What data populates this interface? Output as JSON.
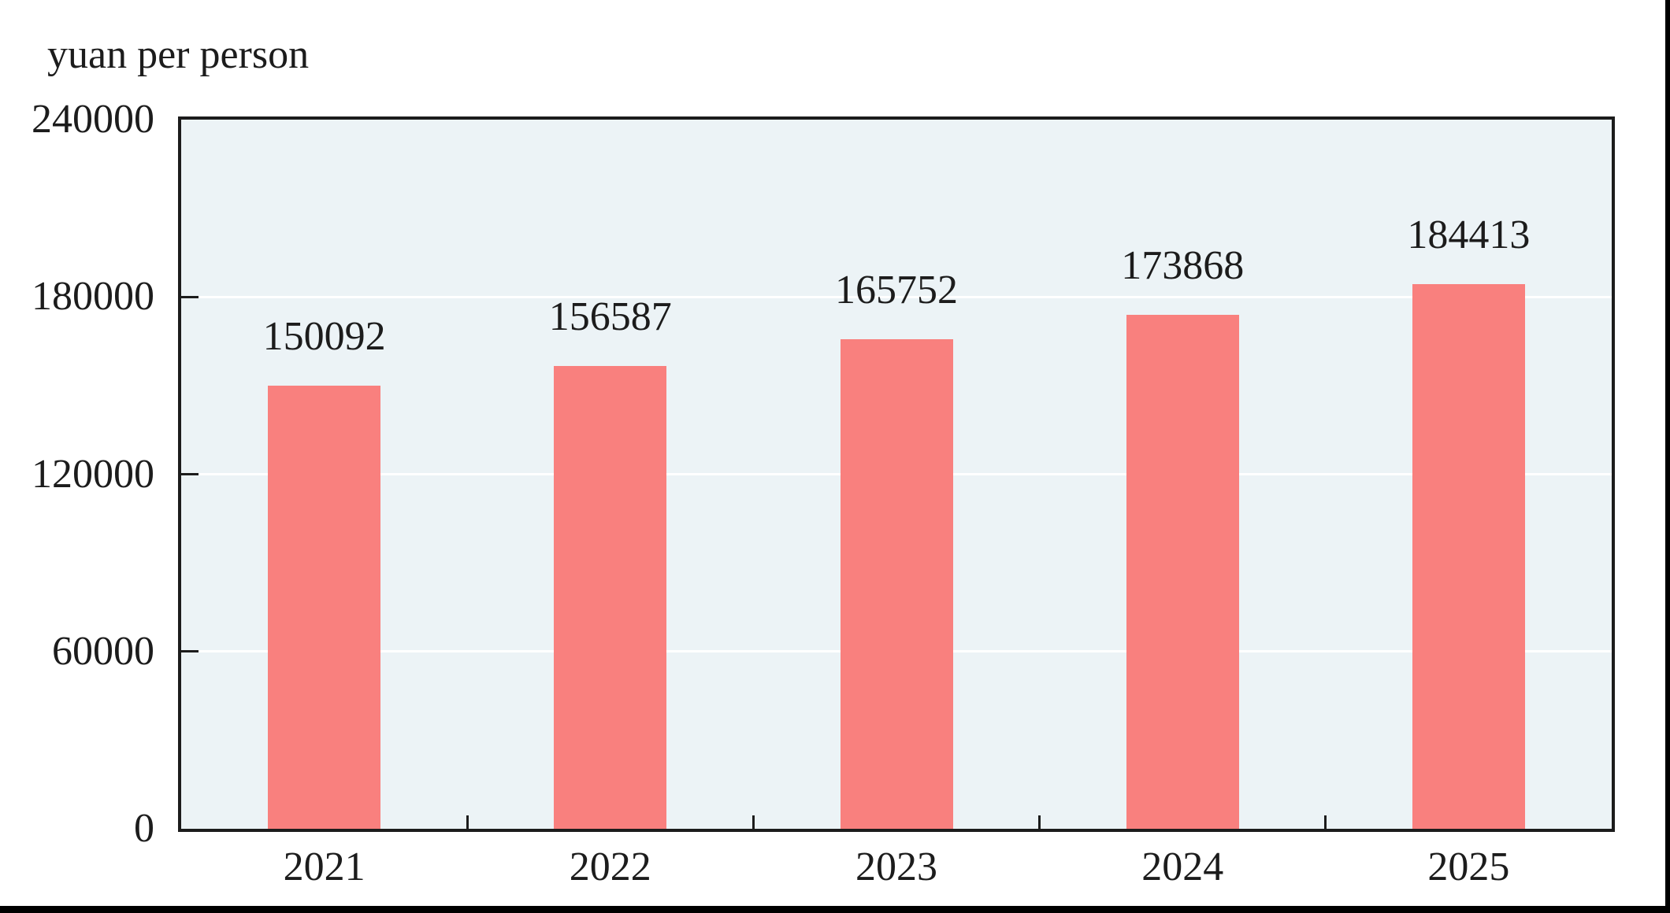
{
  "chart_data": {
    "type": "bar",
    "title": "",
    "ylabel": "yuan per person",
    "xlabel": "",
    "categories": [
      "2021",
      "2022",
      "2023",
      "2024",
      "2025"
    ],
    "values": [
      150092,
      156587,
      165752,
      173868,
      184413
    ],
    "data_labels": [
      "150092",
      "156587",
      "165752",
      "173868",
      "184413"
    ],
    "ylim": [
      0,
      240000
    ],
    "yticks": [
      0,
      60000,
      120000,
      180000,
      240000
    ],
    "ytick_labels": [
      "0",
      "60000",
      "120000",
      "180000",
      "240000"
    ],
    "grid": "horizontal",
    "legend_position": "none",
    "colors": {
      "bar": "#F9807E",
      "plot_background": "#ECF3F6",
      "gridline": "#FFFFFF",
      "axis": "#1C1C1C",
      "text": "#1C1C1C",
      "frame": "#000000",
      "page_background": "#FFFFFF"
    }
  }
}
